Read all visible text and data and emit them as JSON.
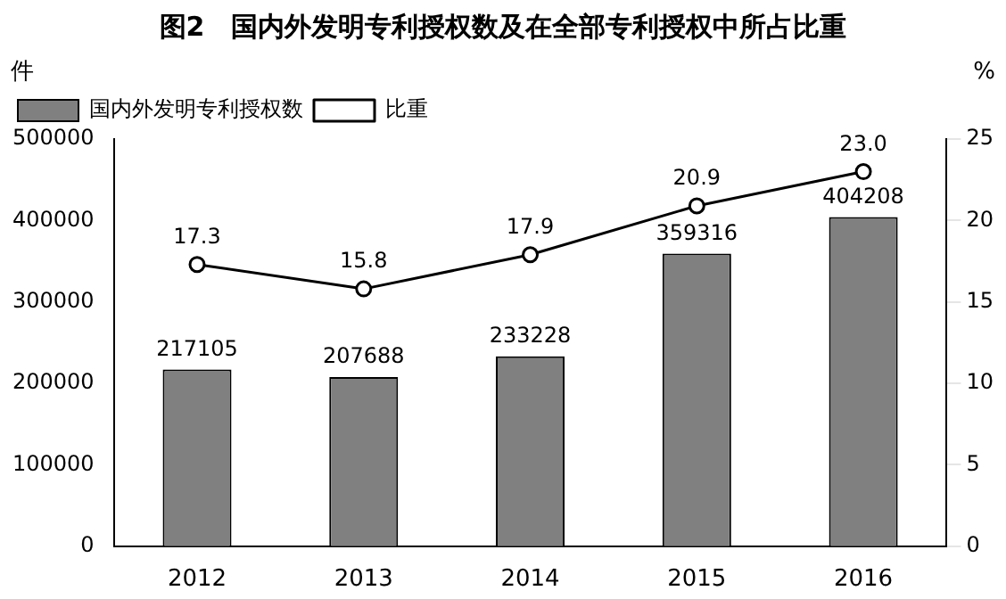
{
  "chart_data": {
    "type": "bar",
    "title": "图2　国内外发明专利授权数及在全部专利授权中所占比重",
    "ylabel": "件",
    "y2label": "%",
    "categories": [
      "2012",
      "2013",
      "2014",
      "2015",
      "2016"
    ],
    "series": [
      {
        "name": "国内外发明专利授权数",
        "color": "#808080",
        "values": [
          217105,
          207688,
          233228,
          359316,
          404208
        ]
      },
      {
        "name": "比重",
        "type": "line",
        "axis": "y2",
        "color": "#000000",
        "marker": "circle",
        "values": [
          17.3,
          15.8,
          17.9,
          20.9,
          23.0
        ],
        "value_labels": [
          "17.3",
          "15.8",
          "17.9",
          "20.9",
          "23.0"
        ]
      }
    ],
    "ylim": [
      0,
      500000
    ],
    "yticks": [
      0,
      100000,
      200000,
      300000,
      400000,
      500000
    ],
    "y2lim": [
      0,
      25
    ],
    "y2ticks": [
      0,
      5,
      10,
      15,
      20,
      25
    ],
    "data_labels": true,
    "grid": false,
    "legend": "top left"
  }
}
